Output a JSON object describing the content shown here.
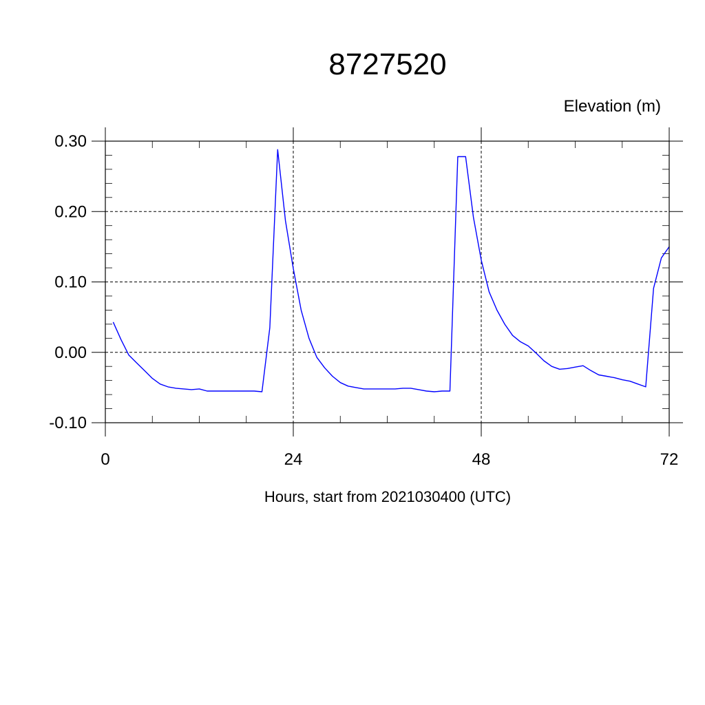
{
  "chart_data": {
    "type": "line",
    "title": "8727520",
    "ylabel": "Elevation (m)",
    "xlabel": "Hours, start from 2021030400 (UTC)",
    "xlim": [
      0,
      72
    ],
    "ylim": [
      -0.1,
      0.3
    ],
    "x_ticks": [
      0,
      24,
      48,
      72
    ],
    "x_tick_labels": [
      "0",
      "24",
      "48",
      "72"
    ],
    "y_ticks": [
      -0.1,
      0.0,
      0.1,
      0.2,
      0.3
    ],
    "y_tick_labels": [
      "-0.10",
      "0.00",
      "0.10",
      "0.20",
      "0.30"
    ],
    "grid": "dashed",
    "line_color": "#0000ff",
    "series": [
      {
        "x": [
          1,
          2,
          3,
          4,
          5,
          6,
          7,
          8,
          9,
          10,
          11,
          12,
          13,
          14,
          15,
          16,
          17,
          18,
          19,
          20,
          21,
          22,
          23,
          24,
          25,
          26,
          27,
          28,
          29,
          30,
          31,
          32,
          33,
          34,
          35,
          36,
          37,
          38,
          39,
          40,
          41,
          42,
          43,
          44,
          45,
          46,
          47,
          48,
          49,
          50,
          51,
          52,
          53,
          54,
          55,
          56,
          57,
          58,
          59,
          60,
          61,
          62,
          63,
          64,
          65,
          66,
          67,
          68,
          69,
          70,
          71,
          72
        ],
        "values": [
          0.043,
          0.018,
          -0.004,
          -0.015,
          -0.026,
          -0.037,
          -0.045,
          -0.049,
          -0.051,
          -0.052,
          -0.053,
          -0.052,
          -0.055,
          -0.055,
          -0.055,
          -0.055,
          -0.055,
          -0.055,
          -0.055,
          -0.056,
          0.035,
          0.288,
          0.187,
          0.119,
          0.06,
          0.02,
          -0.007,
          -0.022,
          -0.034,
          -0.043,
          -0.048,
          -0.05,
          -0.052,
          -0.052,
          -0.052,
          -0.052,
          -0.052,
          -0.051,
          -0.051,
          -0.053,
          -0.055,
          -0.056,
          -0.055,
          -0.055,
          0.278,
          0.278,
          0.192,
          0.131,
          0.086,
          0.06,
          0.04,
          0.024,
          0.015,
          0.009,
          -0.001,
          -0.012,
          -0.02,
          -0.024,
          -0.023,
          -0.021,
          -0.019,
          -0.026,
          -0.032,
          -0.034,
          -0.036,
          -0.039,
          -0.041,
          -0.045,
          -0.049,
          0.091,
          0.134,
          0.15
        ]
      }
    ]
  }
}
